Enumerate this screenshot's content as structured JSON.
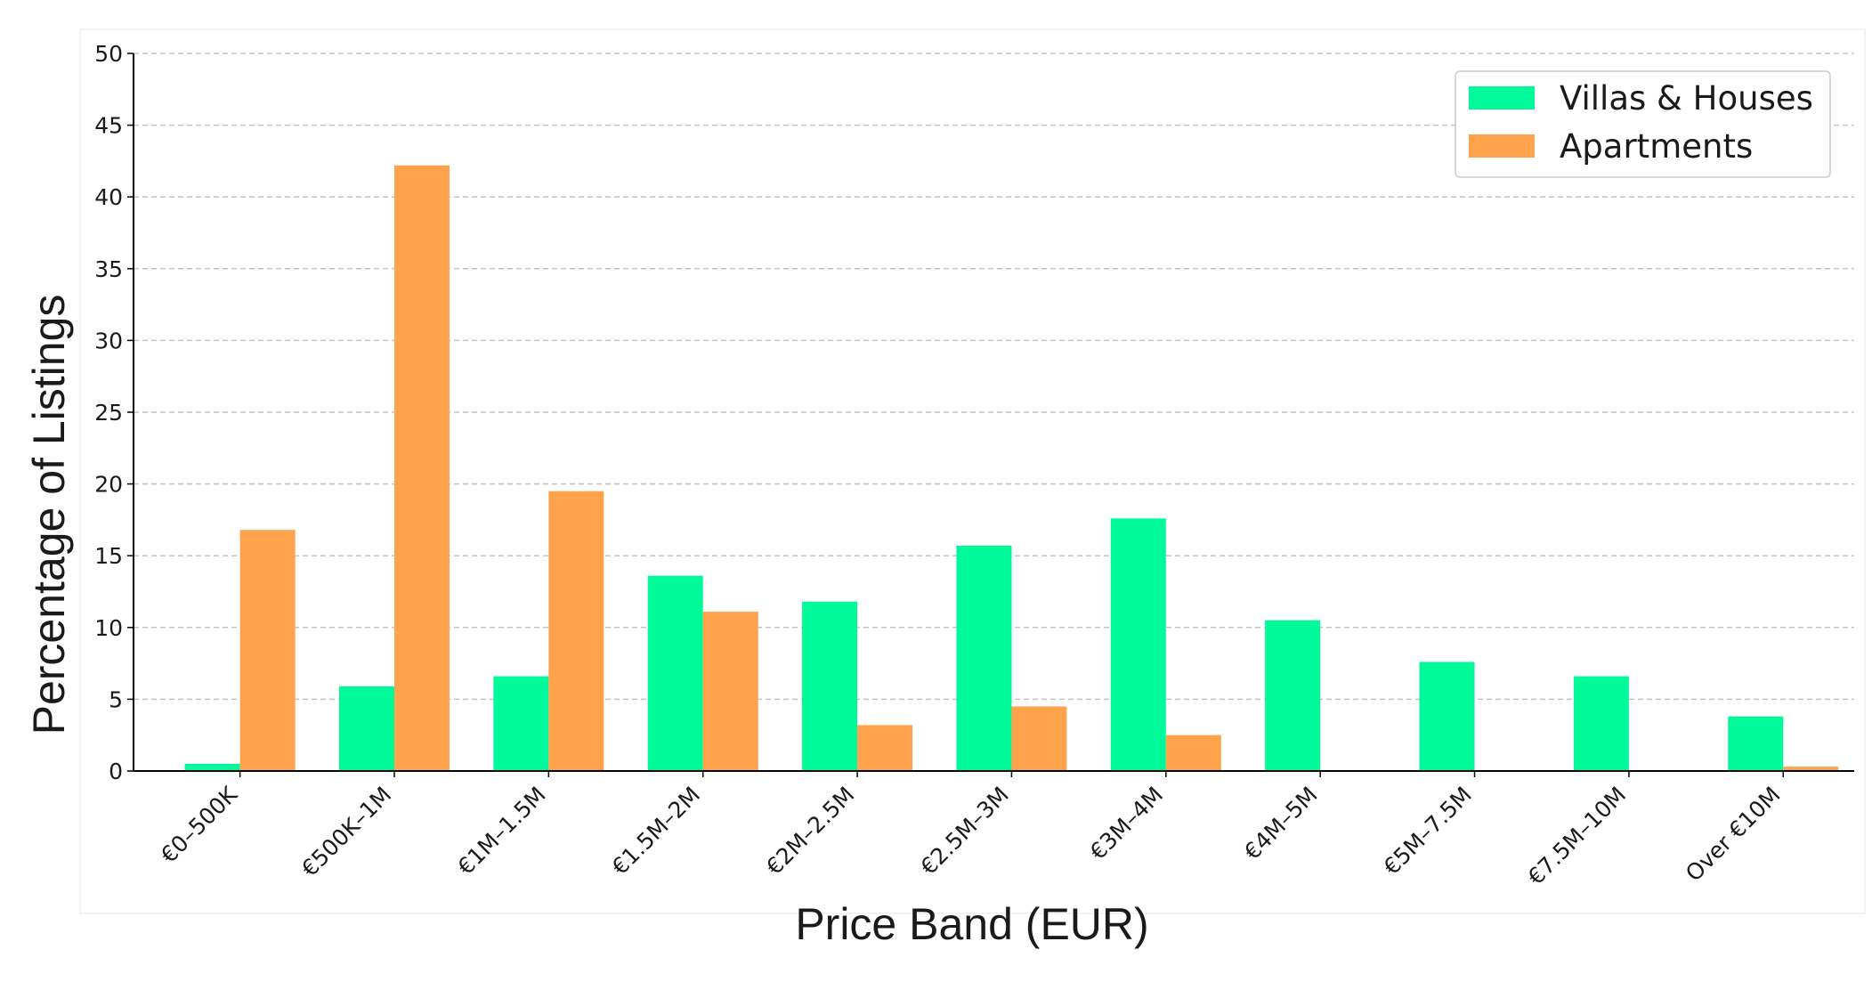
{
  "chart_data": {
    "type": "bar",
    "title": "",
    "xlabel": "Price Band (EUR)",
    "ylabel": "Percentage of Listings",
    "ylim": [
      0,
      50
    ],
    "yticks": [
      0,
      5,
      10,
      15,
      20,
      25,
      30,
      35,
      40,
      45,
      50
    ],
    "grid": "y, dashed",
    "legend_position": "top-right",
    "categories": [
      "€0–500K",
      "€500K–1M",
      "€1M–1.5M",
      "€1.5M–2M",
      "€2M–2.5M",
      "€2.5M–3M",
      "€3M–4M",
      "€4M–5M",
      "€5M–7.5M",
      "€7.5M–10M",
      "Over €10M"
    ],
    "series": [
      {
        "name": "Villas & Houses",
        "color": "#00fa9a",
        "values": [
          0.5,
          5.9,
          6.6,
          13.6,
          11.8,
          15.7,
          17.6,
          10.5,
          7.6,
          6.6,
          3.8
        ]
      },
      {
        "name": "Apartments",
        "color": "#ffa24c",
        "values": [
          16.8,
          42.2,
          19.5,
          11.1,
          3.2,
          4.5,
          2.5,
          0,
          0,
          0,
          0.3
        ]
      }
    ]
  }
}
